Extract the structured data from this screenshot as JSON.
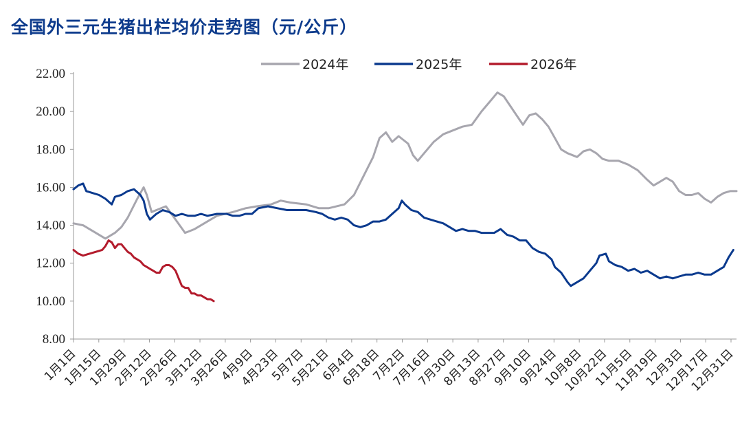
{
  "chart_data": {
    "type": "line",
    "title": "全国外三元生猪出栏均价走势图（元/公斤）",
    "ylim": [
      8,
      22
    ],
    "yticks": [
      "8.00",
      "10.00",
      "12.00",
      "14.00",
      "16.00",
      "18.00",
      "20.00",
      "22.00"
    ],
    "xticks": [
      "1月1日",
      "1月15日",
      "1月29日",
      "2月12日",
      "2月26日",
      "3月12日",
      "3月26日",
      "4月9日",
      "4月23日",
      "5月7日",
      "5月21日",
      "6月4日",
      "6月18日",
      "7月2日",
      "7月16日",
      "7月30日",
      "8月13日",
      "8月27日",
      "9月10日",
      "9月24日",
      "10月8日",
      "10月22日",
      "11月5日",
      "11月19日",
      "12月3日",
      "12月17日",
      "12月31日"
    ],
    "legend_position": "top",
    "series": [
      {
        "name": "2024年",
        "color": "#a7a6ae",
        "points": [
          [
            0,
            14.1
          ],
          [
            6,
            14.0
          ],
          [
            12,
            13.7
          ],
          [
            20,
            13.3
          ],
          [
            26,
            13.6
          ],
          [
            30,
            13.9
          ],
          [
            34,
            14.4
          ],
          [
            40,
            15.4
          ],
          [
            44,
            16.0
          ],
          [
            46,
            15.6
          ],
          [
            49,
            14.7
          ],
          [
            52,
            14.8
          ],
          [
            58,
            15.0
          ],
          [
            64,
            14.3
          ],
          [
            70,
            13.6
          ],
          [
            76,
            13.8
          ],
          [
            82,
            14.1
          ],
          [
            90,
            14.5
          ],
          [
            100,
            14.7
          ],
          [
            108,
            14.9
          ],
          [
            115,
            15.0
          ],
          [
            124,
            15.1
          ],
          [
            130,
            15.3
          ],
          [
            136,
            15.2
          ],
          [
            146,
            15.1
          ],
          [
            154,
            14.9
          ],
          [
            160,
            14.9
          ],
          [
            170,
            15.1
          ],
          [
            176,
            15.6
          ],
          [
            182,
            16.6
          ],
          [
            188,
            17.6
          ],
          [
            192,
            18.6
          ],
          [
            196,
            18.9
          ],
          [
            200,
            18.4
          ],
          [
            204,
            18.7
          ],
          [
            210,
            18.3
          ],
          [
            213,
            17.7
          ],
          [
            216,
            17.4
          ],
          [
            220,
            17.8
          ],
          [
            226,
            18.4
          ],
          [
            232,
            18.8
          ],
          [
            238,
            19.0
          ],
          [
            244,
            19.2
          ],
          [
            250,
            19.3
          ],
          [
            256,
            20.0
          ],
          [
            262,
            20.6
          ],
          [
            266,
            21.0
          ],
          [
            270,
            20.8
          ],
          [
            274,
            20.3
          ],
          [
            278,
            19.8
          ],
          [
            282,
            19.3
          ],
          [
            286,
            19.8
          ],
          [
            290,
            19.9
          ],
          [
            294,
            19.6
          ],
          [
            298,
            19.2
          ],
          [
            302,
            18.6
          ],
          [
            306,
            18.0
          ],
          [
            310,
            17.8
          ],
          [
            316,
            17.6
          ],
          [
            320,
            17.9
          ],
          [
            324,
            18.0
          ],
          [
            328,
            17.8
          ],
          [
            332,
            17.5
          ],
          [
            336,
            17.4
          ],
          [
            342,
            17.4
          ],
          [
            348,
            17.2
          ],
          [
            354,
            16.9
          ],
          [
            360,
            16.4
          ],
          [
            364,
            16.1
          ],
          [
            368,
            16.3
          ],
          [
            372,
            16.5
          ],
          [
            376,
            16.3
          ],
          [
            380,
            15.8
          ],
          [
            384,
            15.6
          ],
          [
            388,
            15.6
          ],
          [
            392,
            15.7
          ],
          [
            396,
            15.4
          ],
          [
            400,
            15.2
          ],
          [
            404,
            15.5
          ],
          [
            408,
            15.7
          ],
          [
            412,
            15.8
          ],
          [
            416,
            15.8
          ]
        ]
      },
      {
        "name": "2025年",
        "color": "#0b3a8e",
        "points": [
          [
            0,
            15.9
          ],
          [
            3,
            16.1
          ],
          [
            6,
            16.2
          ],
          [
            8,
            15.8
          ],
          [
            12,
            15.7
          ],
          [
            16,
            15.6
          ],
          [
            20,
            15.4
          ],
          [
            24,
            15.1
          ],
          [
            26,
            15.5
          ],
          [
            30,
            15.6
          ],
          [
            34,
            15.8
          ],
          [
            38,
            15.9
          ],
          [
            42,
            15.6
          ],
          [
            44,
            15.3
          ],
          [
            46,
            14.6
          ],
          [
            48,
            14.3
          ],
          [
            52,
            14.6
          ],
          [
            56,
            14.8
          ],
          [
            60,
            14.7
          ],
          [
            64,
            14.5
          ],
          [
            68,
            14.6
          ],
          [
            72,
            14.5
          ],
          [
            76,
            14.5
          ],
          [
            80,
            14.6
          ],
          [
            84,
            14.5
          ],
          [
            90,
            14.6
          ],
          [
            96,
            14.6
          ],
          [
            100,
            14.5
          ],
          [
            104,
            14.5
          ],
          [
            108,
            14.6
          ],
          [
            112,
            14.6
          ],
          [
            116,
            14.9
          ],
          [
            122,
            15.0
          ],
          [
            128,
            14.9
          ],
          [
            134,
            14.8
          ],
          [
            140,
            14.8
          ],
          [
            146,
            14.8
          ],
          [
            152,
            14.7
          ],
          [
            156,
            14.6
          ],
          [
            160,
            14.4
          ],
          [
            164,
            14.3
          ],
          [
            168,
            14.4
          ],
          [
            172,
            14.3
          ],
          [
            176,
            14.0
          ],
          [
            180,
            13.9
          ],
          [
            184,
            14.0
          ],
          [
            188,
            14.2
          ],
          [
            192,
            14.2
          ],
          [
            196,
            14.3
          ],
          [
            200,
            14.6
          ],
          [
            204,
            14.9
          ],
          [
            206,
            15.3
          ],
          [
            208,
            15.1
          ],
          [
            212,
            14.8
          ],
          [
            216,
            14.7
          ],
          [
            220,
            14.4
          ],
          [
            224,
            14.3
          ],
          [
            228,
            14.2
          ],
          [
            232,
            14.1
          ],
          [
            236,
            13.9
          ],
          [
            240,
            13.7
          ],
          [
            244,
            13.8
          ],
          [
            248,
            13.7
          ],
          [
            252,
            13.7
          ],
          [
            256,
            13.6
          ],
          [
            260,
            13.6
          ],
          [
            264,
            13.6
          ],
          [
            268,
            13.8
          ],
          [
            272,
            13.5
          ],
          [
            276,
            13.4
          ],
          [
            280,
            13.2
          ],
          [
            284,
            13.2
          ],
          [
            288,
            12.8
          ],
          [
            292,
            12.6
          ],
          [
            296,
            12.5
          ],
          [
            300,
            12.2
          ],
          [
            302,
            11.8
          ],
          [
            306,
            11.5
          ],
          [
            310,
            11.0
          ],
          [
            312,
            10.8
          ],
          [
            316,
            11.0
          ],
          [
            320,
            11.2
          ],
          [
            324,
            11.6
          ],
          [
            328,
            12.0
          ],
          [
            330,
            12.4
          ],
          [
            334,
            12.5
          ],
          [
            336,
            12.1
          ],
          [
            340,
            11.9
          ],
          [
            344,
            11.8
          ],
          [
            348,
            11.6
          ],
          [
            352,
            11.7
          ],
          [
            356,
            11.5
          ],
          [
            360,
            11.6
          ],
          [
            364,
            11.4
          ],
          [
            368,
            11.2
          ],
          [
            372,
            11.3
          ],
          [
            376,
            11.2
          ],
          [
            380,
            11.3
          ],
          [
            384,
            11.4
          ],
          [
            388,
            11.4
          ],
          [
            392,
            11.5
          ],
          [
            396,
            11.4
          ],
          [
            400,
            11.4
          ],
          [
            404,
            11.6
          ],
          [
            408,
            11.8
          ],
          [
            411,
            12.3
          ],
          [
            414,
            12.7
          ]
        ]
      },
      {
        "name": "2026年",
        "color": "#b31b2c",
        "points": [
          [
            0,
            12.7
          ],
          [
            3,
            12.5
          ],
          [
            6,
            12.4
          ],
          [
            10,
            12.5
          ],
          [
            14,
            12.6
          ],
          [
            18,
            12.7
          ],
          [
            20,
            12.9
          ],
          [
            22,
            13.2
          ],
          [
            24,
            13.1
          ],
          [
            26,
            12.8
          ],
          [
            28,
            13.0
          ],
          [
            30,
            13.0
          ],
          [
            32,
            12.8
          ],
          [
            34,
            12.6
          ],
          [
            36,
            12.5
          ],
          [
            38,
            12.3
          ],
          [
            40,
            12.2
          ],
          [
            42,
            12.1
          ],
          [
            44,
            11.9
          ],
          [
            46,
            11.8
          ],
          [
            48,
            11.7
          ],
          [
            50,
            11.6
          ],
          [
            52,
            11.5
          ],
          [
            54,
            11.5
          ],
          [
            56,
            11.8
          ],
          [
            58,
            11.9
          ],
          [
            60,
            11.9
          ],
          [
            62,
            11.8
          ],
          [
            64,
            11.6
          ],
          [
            66,
            11.2
          ],
          [
            68,
            10.8
          ],
          [
            70,
            10.7
          ],
          [
            72,
            10.7
          ],
          [
            74,
            10.4
          ],
          [
            76,
            10.4
          ],
          [
            78,
            10.3
          ],
          [
            80,
            10.3
          ],
          [
            82,
            10.2
          ],
          [
            84,
            10.1
          ],
          [
            86,
            10.1
          ],
          [
            88,
            10.0
          ]
        ]
      }
    ]
  }
}
